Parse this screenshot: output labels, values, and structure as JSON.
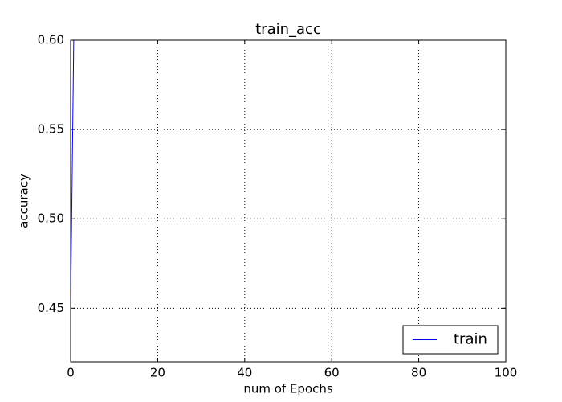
{
  "chart_data": {
    "type": "line",
    "title": "train_acc",
    "x_label": "num of Epochs",
    "y_label": "accuracy",
    "x": [
      0,
      1
    ],
    "series": [
      {
        "name": "train",
        "color": "#0000ff",
        "values": [
          0.45,
          0.66
        ]
      }
    ],
    "xlim": [
      0,
      100
    ],
    "xticks": [
      0,
      20,
      40,
      60,
      80,
      100
    ],
    "ylim": [
      0.42,
      0.6
    ],
    "yticks": [
      {
        "value": 0.45,
        "label": "0.45"
      },
      {
        "value": 0.5,
        "label": "0.50"
      },
      {
        "value": 0.55,
        "label": "0.55"
      },
      {
        "value": 0.6,
        "label": "0.60"
      }
    ],
    "grid": true,
    "legend": "lower right"
  }
}
